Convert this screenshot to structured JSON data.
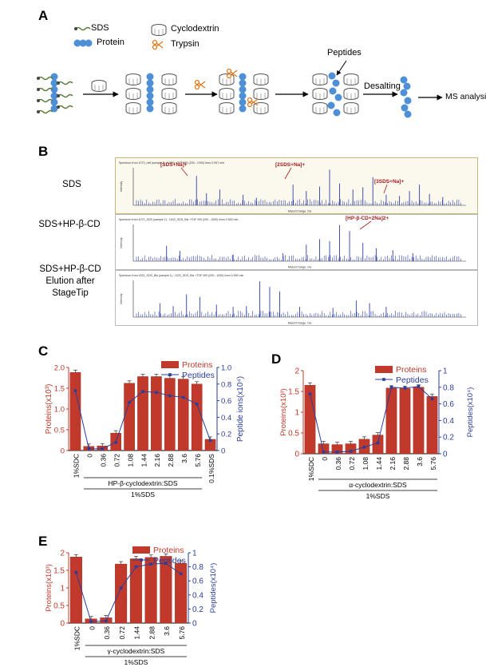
{
  "panelA": {
    "letter": "A",
    "legend": {
      "sds": "SDS",
      "protein": "Protein",
      "cyclodextrin": "Cyclodextrin",
      "trypsin": "Trypsin"
    },
    "peptides_label": "Peptides",
    "desalting_label": "Desalting",
    "ms_label": "MS analysis"
  },
  "panelB": {
    "letter": "B",
    "rows": [
      {
        "label": "SDS",
        "header": "Spectrum from 1073_raft (sample 1) : 100% +TOF MS (200 - 1000) from 0.057 min",
        "annotations": [
          "[SDS+Na]+",
          "[2SDS+Na]+",
          "[3SDS+Na]+"
        ]
      },
      {
        "label": "SDS+HP-β-CD",
        "header": "Spectrum from 1072_SDS (sample 1) : 1022_SDS_Bis +TOF MS (200 - 1000) from 0.563 min",
        "annotations": [
          "[HP-β-CD+2Na]2+"
        ]
      },
      {
        "label": "SDS+HP-β-CD Elution after StageTip",
        "header": "Spectrum from 1022_SDS_Bis (sample 1) : 1022_SDS_Bis +TOF MS (200 - 1000) from 0.590 min",
        "annotations": []
      }
    ],
    "xlabel": "Mass/Charge, Da",
    "ylabel": "Intensity"
  },
  "panelC": {
    "letter": "C"
  },
  "panelD": {
    "letter": "D"
  },
  "panelE": {
    "letter": "E"
  },
  "colors": {
    "bar": "#c0392b",
    "line": "#2c3e99",
    "protein_text": "#c0392b",
    "peptide_text": "#2c3e99",
    "cd_blue": "#4f8fd6"
  },
  "chart_data": [
    {
      "type": "bar",
      "id": "C",
      "categories": [
        "1%SDC",
        "0",
        "0.36",
        "0.72",
        "1.08",
        "1.44",
        "2.16",
        "2.88",
        "3.6",
        "5.76",
        "0.1%SDS"
      ],
      "series": [
        {
          "name": "Proteins",
          "values": [
            1.88,
            0.1,
            0.11,
            0.42,
            1.62,
            1.78,
            1.78,
            1.74,
            1.72,
            1.6,
            0.27
          ],
          "axis": "left"
        },
        {
          "name": "Peptides",
          "values": [
            0.72,
            0.02,
            0.02,
            0.1,
            0.58,
            0.71,
            0.7,
            0.66,
            0.64,
            0.56,
            0.12
          ],
          "axis": "right"
        }
      ],
      "ylabel": "Proteins(x10³)",
      "y2label": "Peptide ions(x10⁴)",
      "ylim": [
        0,
        2.0
      ],
      "y2lim": [
        0,
        1.0
      ],
      "yticks": [
        "0",
        "0.5",
        "1.0",
        "1.5",
        "2.0"
      ],
      "y2ticks": [
        "0",
        "0.2",
        "0.4",
        "0.6",
        "0.8",
        "1.0"
      ],
      "group1_label": "HP-β-cyclodextrin:SDS",
      "group2_label": "1%SDS",
      "legend_position": "top-right"
    },
    {
      "type": "bar",
      "id": "D",
      "categories": [
        "1%SDC",
        "0",
        "0.36",
        "0.72",
        "1.08",
        "1.44",
        "2.16",
        "2.88",
        "3.6",
        "5.76"
      ],
      "series": [
        {
          "name": "Proteins",
          "values": [
            1.65,
            0.24,
            0.22,
            0.24,
            0.35,
            0.45,
            1.58,
            1.57,
            1.6,
            1.38
          ],
          "axis": "left"
        },
        {
          "name": "Peptides",
          "values": [
            0.72,
            0.02,
            0.02,
            0.03,
            0.08,
            0.13,
            0.8,
            0.79,
            0.81,
            0.66
          ],
          "axis": "right"
        }
      ],
      "ylabel": "Proteins(x10³)",
      "y2label": "Peptides(x10⁴)",
      "ylim": [
        0,
        2
      ],
      "y2lim": [
        0,
        1
      ],
      "yticks": [
        "0",
        "0.5",
        "1",
        "1.5",
        "2"
      ],
      "y2ticks": [
        "0",
        "0.2",
        "0.4",
        "0.6",
        "0.8",
        "1"
      ],
      "group1_label": "α-cyclodextrin:SDS",
      "group2_label": "1%SDS",
      "legend_position": "top-right"
    },
    {
      "type": "bar",
      "id": "E",
      "categories": [
        "1%SDC",
        "0",
        "0.36",
        "0.72",
        "1.44",
        "2.88",
        "3.6",
        "5.76"
      ],
      "series": [
        {
          "name": "Proteins",
          "values": [
            1.88,
            0.12,
            0.15,
            1.68,
            1.83,
            1.87,
            1.9,
            1.7
          ],
          "axis": "left"
        },
        {
          "name": "Peptides",
          "values": [
            0.72,
            0.02,
            0.03,
            0.5,
            0.8,
            0.84,
            0.85,
            0.7
          ],
          "axis": "right"
        }
      ],
      "ylabel": "Proteins(x10³)",
      "y2label": "Peptides(x10⁴)",
      "ylim": [
        0,
        2
      ],
      "y2lim": [
        0,
        1
      ],
      "yticks": [
        "0",
        "0.5",
        "1",
        "1.5",
        "2"
      ],
      "y2ticks": [
        "0",
        "0.2",
        "0.4",
        "0.6",
        "0.8",
        "1"
      ],
      "group1_label": "γ-cyclodextrin:SDS",
      "group2_label": "1%SDS",
      "legend_position": "top-right"
    }
  ]
}
